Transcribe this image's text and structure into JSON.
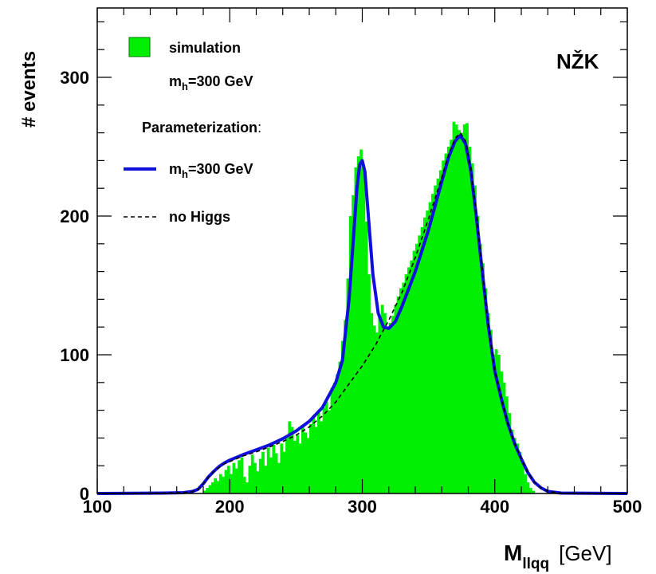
{
  "chart_data": {
    "type": "histogram",
    "ylabel": "# events",
    "xlabel_main": "M",
    "xlabel_sub": "llqq",
    "xlabel_unit": "[GeV]",
    "xlim": [
      100,
      500
    ],
    "ylim": [
      0,
      350
    ],
    "x_ticks": [
      100,
      200,
      300,
      400,
      500
    ],
    "y_ticks": [
      0,
      100,
      200,
      300
    ],
    "annotation": "NŽK",
    "colors": {
      "simulation": "#00ee00",
      "parameterization": "#1010dd",
      "no_higgs": "#000000"
    },
    "legend": {
      "simulation_label": "simulation",
      "simulation_mass": "=300 GeV",
      "param_title": "Parameterization",
      "param_colon": ":",
      "param_mass": "=300 GeV",
      "no_higgs_label": "no Higgs",
      "mass_symbol": "m",
      "mass_sub": "h"
    },
    "series": [
      {
        "kind": "histogram",
        "bin_width": 2,
        "bins": [
          {
            "x": 180,
            "y": 2
          },
          {
            "x": 182,
            "y": 4
          },
          {
            "x": 184,
            "y": 6
          },
          {
            "x": 186,
            "y": 8
          },
          {
            "x": 188,
            "y": 11
          },
          {
            "x": 190,
            "y": 9
          },
          {
            "x": 192,
            "y": 14
          },
          {
            "x": 194,
            "y": 12
          },
          {
            "x": 196,
            "y": 17
          },
          {
            "x": 198,
            "y": 20
          },
          {
            "x": 200,
            "y": 14
          },
          {
            "x": 202,
            "y": 22
          },
          {
            "x": 204,
            "y": 18
          },
          {
            "x": 206,
            "y": 24
          },
          {
            "x": 208,
            "y": 26
          },
          {
            "x": 210,
            "y": 12
          },
          {
            "x": 212,
            "y": 8
          },
          {
            "x": 214,
            "y": 20
          },
          {
            "x": 216,
            "y": 28
          },
          {
            "x": 218,
            "y": 22
          },
          {
            "x": 220,
            "y": 16
          },
          {
            "x": 222,
            "y": 25
          },
          {
            "x": 224,
            "y": 30
          },
          {
            "x": 226,
            "y": 20
          },
          {
            "x": 228,
            "y": 33
          },
          {
            "x": 230,
            "y": 26
          },
          {
            "x": 232,
            "y": 35
          },
          {
            "x": 234,
            "y": 29
          },
          {
            "x": 236,
            "y": 22
          },
          {
            "x": 238,
            "y": 36
          },
          {
            "x": 240,
            "y": 30
          },
          {
            "x": 242,
            "y": 40
          },
          {
            "x": 244,
            "y": 52
          },
          {
            "x": 246,
            "y": 48
          },
          {
            "x": 248,
            "y": 38
          },
          {
            "x": 250,
            "y": 42
          },
          {
            "x": 252,
            "y": 36
          },
          {
            "x": 254,
            "y": 49
          },
          {
            "x": 256,
            "y": 44
          },
          {
            "x": 258,
            "y": 40
          },
          {
            "x": 260,
            "y": 50
          },
          {
            "x": 262,
            "y": 55
          },
          {
            "x": 264,
            "y": 48
          },
          {
            "x": 266,
            "y": 58
          },
          {
            "x": 268,
            "y": 52
          },
          {
            "x": 270,
            "y": 62
          },
          {
            "x": 272,
            "y": 66
          },
          {
            "x": 274,
            "y": 60
          },
          {
            "x": 276,
            "y": 76
          },
          {
            "x": 278,
            "y": 80
          },
          {
            "x": 280,
            "y": 86
          },
          {
            "x": 282,
            "y": 95
          },
          {
            "x": 284,
            "y": 110
          },
          {
            "x": 286,
            "y": 125
          },
          {
            "x": 288,
            "y": 155
          },
          {
            "x": 290,
            "y": 200
          },
          {
            "x": 292,
            "y": 215
          },
          {
            "x": 294,
            "y": 235
          },
          {
            "x": 296,
            "y": 243
          },
          {
            "x": 298,
            "y": 248
          },
          {
            "x": 300,
            "y": 235
          },
          {
            "x": 302,
            "y": 196
          },
          {
            "x": 304,
            "y": 158
          },
          {
            "x": 306,
            "y": 130
          },
          {
            "x": 308,
            "y": 121
          },
          {
            "x": 310,
            "y": 116
          },
          {
            "x": 312,
            "y": 128
          },
          {
            "x": 314,
            "y": 136
          },
          {
            "x": 316,
            "y": 130
          },
          {
            "x": 318,
            "y": 120
          },
          {
            "x": 320,
            "y": 123
          },
          {
            "x": 322,
            "y": 128
          },
          {
            "x": 324,
            "y": 136
          },
          {
            "x": 326,
            "y": 142
          },
          {
            "x": 328,
            "y": 148
          },
          {
            "x": 330,
            "y": 152
          },
          {
            "x": 332,
            "y": 158
          },
          {
            "x": 334,
            "y": 163
          },
          {
            "x": 336,
            "y": 168
          },
          {
            "x": 338,
            "y": 175
          },
          {
            "x": 340,
            "y": 180
          },
          {
            "x": 342,
            "y": 186
          },
          {
            "x": 344,
            "y": 192
          },
          {
            "x": 346,
            "y": 199
          },
          {
            "x": 348,
            "y": 204
          },
          {
            "x": 350,
            "y": 210
          },
          {
            "x": 352,
            "y": 216
          },
          {
            "x": 354,
            "y": 222
          },
          {
            "x": 356,
            "y": 227
          },
          {
            "x": 358,
            "y": 233
          },
          {
            "x": 360,
            "y": 240
          },
          {
            "x": 362,
            "y": 245
          },
          {
            "x": 364,
            "y": 250
          },
          {
            "x": 366,
            "y": 255
          },
          {
            "x": 368,
            "y": 268
          },
          {
            "x": 370,
            "y": 266
          },
          {
            "x": 372,
            "y": 262
          },
          {
            "x": 374,
            "y": 260
          },
          {
            "x": 376,
            "y": 266
          },
          {
            "x": 378,
            "y": 267
          },
          {
            "x": 380,
            "y": 250
          },
          {
            "x": 382,
            "y": 238
          },
          {
            "x": 384,
            "y": 222
          },
          {
            "x": 386,
            "y": 200
          },
          {
            "x": 388,
            "y": 180
          },
          {
            "x": 390,
            "y": 166
          },
          {
            "x": 392,
            "y": 148
          },
          {
            "x": 394,
            "y": 130
          },
          {
            "x": 396,
            "y": 118
          },
          {
            "x": 398,
            "y": 100
          },
          {
            "x": 400,
            "y": 104
          },
          {
            "x": 402,
            "y": 100
          },
          {
            "x": 404,
            "y": 88
          },
          {
            "x": 406,
            "y": 80
          },
          {
            "x": 408,
            "y": 70
          },
          {
            "x": 410,
            "y": 58
          },
          {
            "x": 412,
            "y": 46
          },
          {
            "x": 414,
            "y": 40
          },
          {
            "x": 416,
            "y": 36
          },
          {
            "x": 418,
            "y": 30
          },
          {
            "x": 420,
            "y": 22
          },
          {
            "x": 422,
            "y": 14
          },
          {
            "x": 424,
            "y": 8
          },
          {
            "x": 426,
            "y": 4
          },
          {
            "x": 428,
            "y": 2
          }
        ]
      },
      {
        "kind": "line",
        "style": "solid",
        "points": [
          [
            100,
            0
          ],
          [
            150,
            0.3
          ],
          [
            165,
            0.6
          ],
          [
            172,
            1.5
          ],
          [
            176,
            3
          ],
          [
            180,
            7
          ],
          [
            184,
            12
          ],
          [
            188,
            16
          ],
          [
            192,
            19.5
          ],
          [
            196,
            22
          ],
          [
            200,
            24
          ],
          [
            210,
            28
          ],
          [
            220,
            31.5
          ],
          [
            230,
            35
          ],
          [
            240,
            39.5
          ],
          [
            250,
            45
          ],
          [
            260,
            52
          ],
          [
            270,
            62
          ],
          [
            280,
            80
          ],
          [
            285,
            96
          ],
          [
            290,
            140
          ],
          [
            293,
            180
          ],
          [
            296,
            220
          ],
          [
            298,
            237
          ],
          [
            300,
            240
          ],
          [
            302,
            232
          ],
          [
            305,
            195
          ],
          [
            308,
            158
          ],
          [
            312,
            130
          ],
          [
            316,
            120
          ],
          [
            320,
            119
          ],
          [
            325,
            124
          ],
          [
            330,
            135
          ],
          [
            340,
            160
          ],
          [
            350,
            190
          ],
          [
            360,
            225
          ],
          [
            365,
            242
          ],
          [
            370,
            254
          ],
          [
            374,
            258
          ],
          [
            378,
            252
          ],
          [
            382,
            232
          ],
          [
            386,
            200
          ],
          [
            390,
            165
          ],
          [
            395,
            122
          ],
          [
            400,
            88
          ],
          [
            405,
            68
          ],
          [
            410,
            50
          ],
          [
            415,
            36
          ],
          [
            420,
            25
          ],
          [
            425,
            15
          ],
          [
            430,
            8
          ],
          [
            435,
            4
          ],
          [
            440,
            1.5
          ],
          [
            450,
            0.3
          ],
          [
            500,
            0
          ]
        ]
      },
      {
        "kind": "line",
        "style": "dashed",
        "points": [
          [
            100,
            0
          ],
          [
            150,
            0.3
          ],
          [
            165,
            0.6
          ],
          [
            172,
            1.5
          ],
          [
            176,
            3
          ],
          [
            180,
            7
          ],
          [
            184,
            12
          ],
          [
            188,
            16
          ],
          [
            192,
            19
          ],
          [
            196,
            21.5
          ],
          [
            200,
            23
          ],
          [
            210,
            27
          ],
          [
            220,
            30
          ],
          [
            230,
            33.5
          ],
          [
            240,
            37.5
          ],
          [
            250,
            42
          ],
          [
            260,
            48
          ],
          [
            270,
            56
          ],
          [
            280,
            66
          ],
          [
            290,
            79
          ],
          [
            300,
            92
          ],
          [
            310,
            107
          ],
          [
            320,
            125
          ],
          [
            330,
            145
          ],
          [
            340,
            170
          ],
          [
            350,
            198
          ],
          [
            360,
            228
          ],
          [
            365,
            244
          ],
          [
            370,
            256
          ],
          [
            374,
            260
          ],
          [
            378,
            254
          ],
          [
            382,
            234
          ],
          [
            386,
            202
          ],
          [
            390,
            166
          ],
          [
            395,
            123
          ],
          [
            400,
            88
          ],
          [
            405,
            68
          ],
          [
            410,
            50
          ],
          [
            415,
            36
          ],
          [
            420,
            25
          ],
          [
            425,
            15
          ],
          [
            430,
            8
          ],
          [
            435,
            4
          ],
          [
            440,
            1.5
          ],
          [
            450,
            0.3
          ],
          [
            500,
            0
          ]
        ]
      }
    ]
  }
}
